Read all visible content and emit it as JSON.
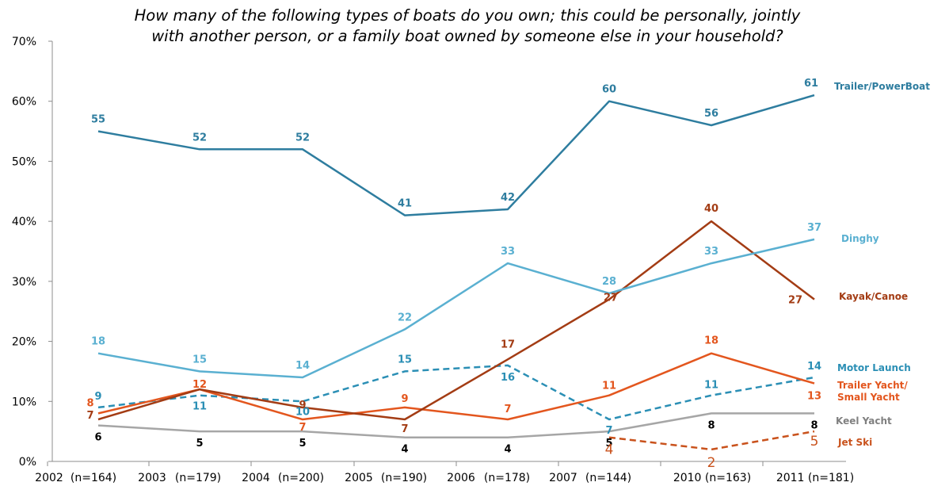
{
  "chart_data": {
    "type": "line",
    "title_lines": [
      "How many of the following types of boats do you own; this could be personally, jointly",
      "with another person, or a family boat owned by someone else in your household?"
    ],
    "x": [
      "2002 (n=164)",
      "2003 (n=179)",
      "2004 (n=200)",
      "2005 (n=190)",
      "2006 (n=178)",
      "2007 (n=144)",
      "2010 (n=163)",
      "2011 (n=181)"
    ],
    "x_tick_labels": [
      "2002",
      "(n=164)",
      "2003",
      "(n=179)",
      "2004",
      "(n=200)",
      "2005",
      "(n=190)",
      "2006",
      "(n=178)",
      "2007",
      "(n=144)",
      "2010 (n=163)",
      "2011 (n=181)"
    ],
    "y_tick_labels": [
      "0%",
      "10%",
      "20%",
      "30%",
      "40%",
      "50%",
      "60%",
      "70%"
    ],
    "ylim": [
      0,
      70
    ],
    "ylabel": "",
    "xlabel": "",
    "grid": false,
    "series": [
      {
        "name": "Trailer/PowerBoat",
        "legend_lines": [
          "Trailer/PowerBoat"
        ],
        "color": "#2e7d9f",
        "dashed": false,
        "values": [
          55,
          52,
          52,
          41,
          42,
          60,
          56,
          61
        ],
        "labels": [
          "55",
          "52",
          "52",
          "41",
          "42",
          "60",
          "56",
          "61"
        ]
      },
      {
        "name": "Dinghy",
        "legend_lines": [
          "Dinghy"
        ],
        "color": "#5ab0d1",
        "dashed": false,
        "values": [
          18,
          15,
          14,
          22,
          33,
          28,
          33,
          37
        ],
        "labels": [
          "18",
          "15",
          "14",
          "22",
          "33",
          "28",
          "33",
          "37"
        ]
      },
      {
        "name": "Kayak/Canoe",
        "legend_lines": [
          "Kayak/Canoe"
        ],
        "color": "#a33c14",
        "dashed": false,
        "values": [
          7,
          12,
          9,
          7,
          17,
          27,
          40,
          27
        ],
        "labels": [
          "7",
          "",
          "9",
          "7",
          "17",
          "27",
          "40",
          "27"
        ]
      },
      {
        "name": "Motor Launch",
        "legend_lines": [
          "Motor Launch"
        ],
        "color": "#2b8fb5",
        "dashed": true,
        "values": [
          9,
          11,
          10,
          15,
          16,
          7,
          11,
          14
        ],
        "labels": [
          "9",
          "11",
          "10",
          "15",
          "16",
          "7",
          "11",
          "14"
        ]
      },
      {
        "name": "Trailer Yacht/ Small Yacht",
        "legend_lines": [
          "Trailer Yacht/",
          "Small Yacht"
        ],
        "color": "#e3561e",
        "dashed": false,
        "values": [
          8,
          12,
          7,
          9,
          7,
          11,
          18,
          13
        ],
        "labels": [
          "8",
          "12",
          "7",
          "9",
          "7",
          "11",
          "18",
          "13"
        ]
      },
      {
        "name": "Keel Yacht",
        "legend_lines": [
          "Keel Yacht"
        ],
        "color": "#a6a6a6",
        "dashed": false,
        "values": [
          6,
          5,
          5,
          4,
          4,
          5,
          8,
          8
        ],
        "labels": [
          "6",
          "5",
          "5",
          "4",
          "4",
          "5",
          "8",
          "8"
        ]
      },
      {
        "name": "Jet Ski",
        "legend_lines": [
          "Jet Ski"
        ],
        "color": "#c9521c",
        "dashed": true,
        "values": [
          null,
          null,
          null,
          null,
          null,
          4,
          2,
          5
        ],
        "labels": [
          "",
          "",
          "",
          "",
          "",
          "4",
          "2",
          "5"
        ]
      }
    ]
  }
}
